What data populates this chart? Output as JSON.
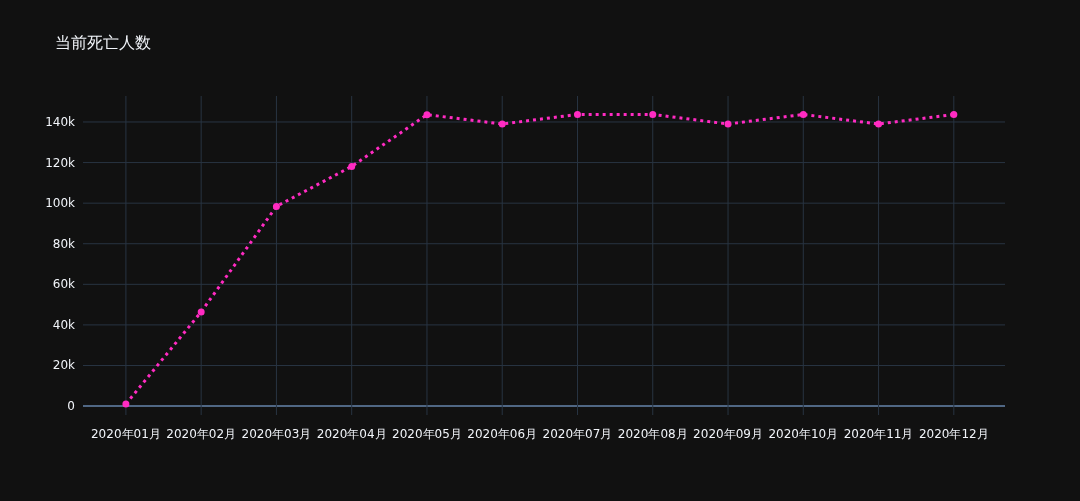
{
  "chart_data": {
    "type": "line",
    "title": "当前死亡人数",
    "categories": [
      "2020年01月",
      "2020年02月",
      "2020年03月",
      "2020年04月",
      "2020年05月",
      "2020年06月",
      "2020年07月",
      "2020年08月",
      "2020年09月",
      "2020年10月",
      "2020年11月",
      "2020年12月"
    ],
    "series": [
      {
        "color": "#ff2bc2",
        "values": [
          1000,
          46400,
          98400,
          118100,
          143600,
          139000,
          143700,
          143700,
          139000,
          143700,
          139000,
          143700
        ]
      }
    ],
    "ylim": [
      -4400,
      152800
    ],
    "yticks": [
      0,
      {
        "value": 20000,
        "label": "20k"
      },
      {
        "value": 40000,
        "label": "40k"
      },
      {
        "value": 60000,
        "label": "60k"
      },
      {
        "value": 80000,
        "label": "80k"
      },
      {
        "value": 100000,
        "label": "100k"
      },
      {
        "value": 120000,
        "label": "120k"
      },
      {
        "value": 140000,
        "label": "140k"
      }
    ],
    "grid": true,
    "marker": "circle",
    "line_style": "dotted"
  }
}
